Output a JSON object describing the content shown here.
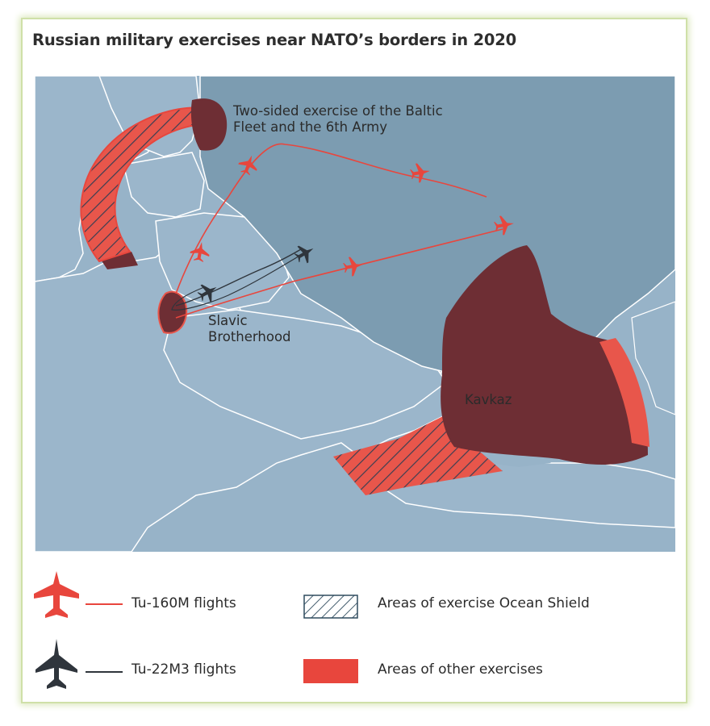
{
  "title": "Russian military exercises near NATO’s borders in 2020",
  "map": {
    "labels": {
      "baltic_exercise": [
        "Two-sided exercise of the Baltic",
        "Fleet and the 6th Army"
      ],
      "slavic_brotherhood": [
        "Slavic",
        "Brotherhood"
      ],
      "kavkaz": "Kavkaz"
    },
    "colors": {
      "sea": "#97b3c8",
      "land": "#9bb6cb",
      "russia": "#7c9cb1",
      "borders": "#ffffff",
      "exercise_area": "#6e2e34",
      "exercise_area_light": "#e8564b",
      "tu160_line": "#e8463d",
      "tu22_line": "#2f353c"
    }
  },
  "legend": {
    "tu160": "Tu-160M flights",
    "tu22": "Tu-22M3 flights",
    "ocean_shield": "Areas of exercise Ocean Shield",
    "other_exercises": "Areas of other exercises",
    "icons": [
      "plane-icon",
      "line-icon",
      "hatch-swatch-icon",
      "fill-swatch-icon"
    ]
  }
}
